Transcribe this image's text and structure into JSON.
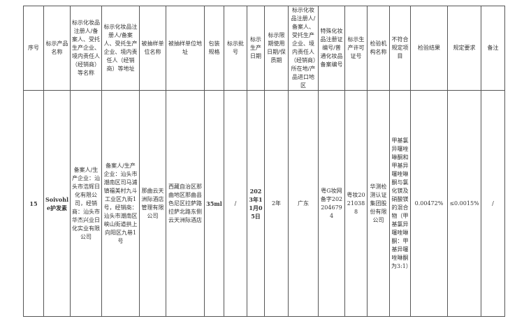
{
  "headers": [
    "序号",
    "标示产品名称",
    "标示化妆品注册人/备案人、受托生产企业、境内责任人（经销商）等名称",
    "标示化妆品注册人/备案人、受托生产企业、境内责任人（经销商）等地址",
    "被抽样单位名称",
    "被抽样单位地址",
    "包装规格",
    "标示批号",
    "标示生产日期",
    "标示限期使用日期/保质期",
    "标示化妆品注册人/备案人、受托生产企业、境内责任人（经销商）所在地/产品进口地区",
    "特殊化妆品注册证编号/普通化妆品备案编号",
    "标示生产许可证号",
    "检验机构名称",
    "不符合规定项目",
    "检验结果",
    "规定要求",
    "备注"
  ],
  "row": [
    "15",
    "Soivohle护发素",
    "备案人/生产企业：汕头市浩辉日化有限公司，经销商：汕头市华杰兴业日化实业有限公司",
    "备案人/生产企业：汕头市潮南区司马浦镇福美村九斗工业区九街1号，经销商：汕头市潮南区峡山街道拱上向阳区九巷1号",
    "那曲云天洲际酒店管理有限公司",
    "西藏自治区那曲地区那曲县色尼区拉萨路拉萨北路东侧云天洲际酒店",
    "35ml",
    "/",
    "2023年11月05日",
    "2年",
    "广东",
    "粤G妆网备字2022046794",
    "粤妆20210388",
    "华测检测认证集团股份有限公司",
    "甲基氯异噻唑啉酮和甲基异噻唑啉酮与氯化镁及硝酸镁的混合物（甲基氯异噻唑啉酮：甲基异噻唑啉酮为3:1）",
    "0.00472%",
    "≤0.0015%",
    "/"
  ]
}
